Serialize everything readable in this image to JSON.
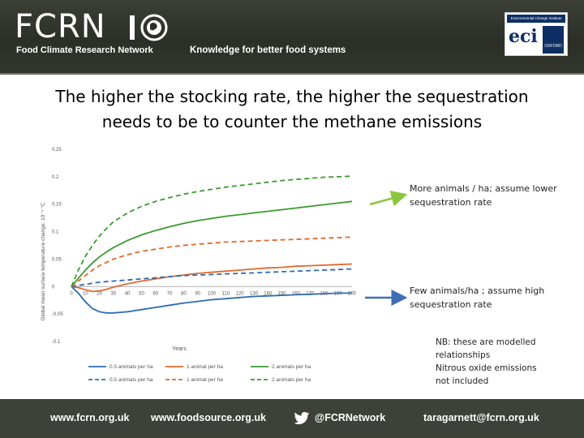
{
  "header": {
    "logo_text": "FCRN",
    "org_name": "Food Climate Research Network",
    "tagline": "Knowledge for better food systems",
    "badge_top": "Environmental Change Institute",
    "badge_main": "eci",
    "badge_crest": "OXFORD"
  },
  "slide": {
    "title_line1": "The higher the stocking rate, the higher the sequestration",
    "title_line2": "needs to be to counter the methane emissions"
  },
  "chart_data": {
    "type": "line",
    "ylabel": "Global mean surface temperature change, 10⁻⁵ °C",
    "xlabel": "Years",
    "xlim": [
      0,
      200
    ],
    "ylim": [
      -0.1,
      0.25
    ],
    "x_ticks": [
      "0",
      "10",
      "20",
      "30",
      "40",
      "50",
      "60",
      "70",
      "80",
      "90",
      "100",
      "110",
      "120",
      "130",
      "140",
      "150",
      "160",
      "170",
      "180",
      "190",
      "200"
    ],
    "y_ticks": [
      "0.25",
      "0.2",
      "0.15",
      "0.1",
      "0.05",
      "0",
      "-0.05",
      "-0.1"
    ],
    "colors": {
      "blue": "#2e6bb0",
      "orange": "#e2692f",
      "green": "#3c9a32"
    },
    "x": [
      0,
      5,
      10,
      15,
      20,
      25,
      30,
      40,
      50,
      60,
      70,
      80,
      90,
      100,
      110,
      120,
      130,
      140,
      150,
      160,
      170,
      180,
      190,
      200
    ],
    "series": [
      {
        "name": "0.5 animals per ha",
        "legend": "0.5 animals per ha",
        "color": "blue",
        "dash": false,
        "values": [
          0,
          -0.012,
          -0.028,
          -0.04,
          -0.046,
          -0.048,
          -0.048,
          -0.046,
          -0.042,
          -0.038,
          -0.034,
          -0.03,
          -0.027,
          -0.024,
          -0.022,
          -0.02,
          -0.018,
          -0.017,
          -0.016,
          -0.015,
          -0.014,
          -0.013,
          -0.012,
          -0.012
        ]
      },
      {
        "name": "1 animal per ha",
        "legend": "1 animal per ha",
        "color": "orange",
        "dash": false,
        "values": [
          0,
          -0.002,
          -0.006,
          -0.009,
          -0.008,
          -0.005,
          -0.001,
          0.005,
          0.01,
          0.014,
          0.018,
          0.021,
          0.024,
          0.026,
          0.028,
          0.03,
          0.032,
          0.034,
          0.035,
          0.037,
          0.038,
          0.039,
          0.04,
          0.041
        ]
      },
      {
        "name": "2 animals per ha",
        "legend": "2 animals per ha",
        "color": "green",
        "dash": false,
        "values": [
          0,
          0.015,
          0.03,
          0.043,
          0.054,
          0.063,
          0.071,
          0.084,
          0.094,
          0.102,
          0.109,
          0.115,
          0.12,
          0.124,
          0.128,
          0.131,
          0.134,
          0.137,
          0.14,
          0.143,
          0.146,
          0.149,
          0.152,
          0.155
        ]
      },
      {
        "name": "0.5 animals per ha (dashed)",
        "legend": "0.5 animals per ha",
        "color": "blue",
        "dash": true,
        "values": [
          0,
          0.002,
          0.004,
          0.006,
          0.008,
          0.009,
          0.01,
          0.012,
          0.014,
          0.016,
          0.018,
          0.02,
          0.021,
          0.022,
          0.023,
          0.024,
          0.025,
          0.026,
          0.027,
          0.028,
          0.029,
          0.03,
          0.031,
          0.032
        ]
      },
      {
        "name": "1 animal per ha (dashed)",
        "legend": "1 animal per ha",
        "color": "orange",
        "dash": true,
        "values": [
          0,
          0.01,
          0.02,
          0.03,
          0.038,
          0.044,
          0.05,
          0.058,
          0.064,
          0.068,
          0.072,
          0.075,
          0.077,
          0.079,
          0.081,
          0.082,
          0.083,
          0.084,
          0.085,
          0.086,
          0.087,
          0.088,
          0.089,
          0.09
        ]
      },
      {
        "name": "2 animals per ha (dashed)",
        "legend": "2 animals per ha",
        "color": "green",
        "dash": true,
        "values": [
          0,
          0.03,
          0.055,
          0.075,
          0.092,
          0.106,
          0.118,
          0.134,
          0.146,
          0.155,
          0.162,
          0.168,
          0.173,
          0.177,
          0.181,
          0.184,
          0.187,
          0.19,
          0.193,
          0.195,
          0.197,
          0.199,
          0.2,
          0.201
        ]
      }
    ]
  },
  "annotations": {
    "more_line1": "More animals / ha; assume lower",
    "more_line2": "sequestration rate",
    "few_line1": "Few animals/ha ; assume high",
    "few_line2": "sequestration rate",
    "nb_line1": "NB: these are modelled",
    "nb_line2": "relationships",
    "nb_line3": "Nitrous oxide emissions",
    "nb_line4": "not included",
    "arrow_more_color": "#8cc63f",
    "arrow_few_color": "#3d6fb3"
  },
  "footer": {
    "link1": "www.fcrn.org.uk",
    "link2": "www.foodsource.org.uk",
    "twitter": "@FCRNetwork",
    "email": "taragarnett@fcrn.org.uk"
  }
}
